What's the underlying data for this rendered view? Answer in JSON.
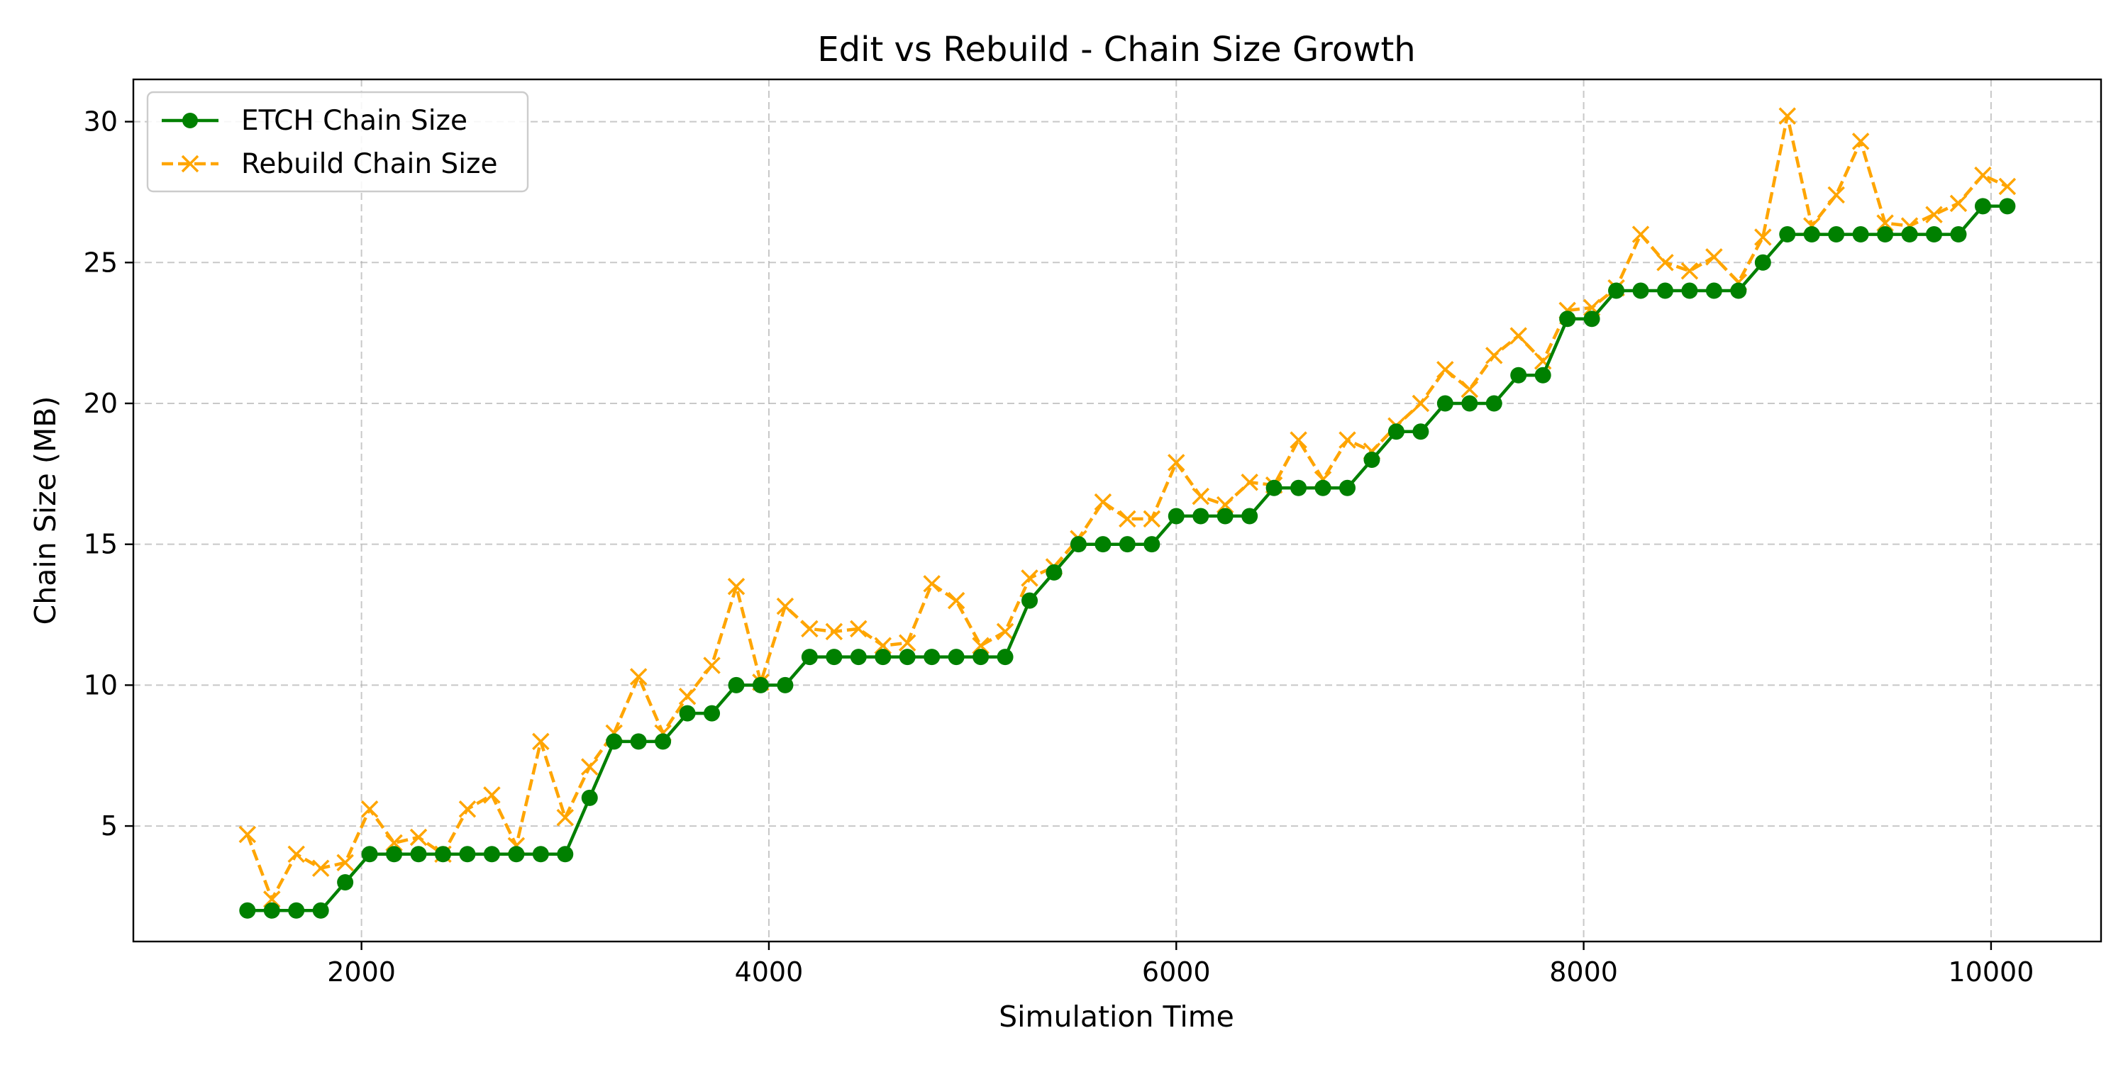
{
  "chart_data": {
    "type": "line",
    "title": "Edit vs Rebuild - Chain Size Growth",
    "xlabel": "Simulation Time",
    "ylabel": "Chain Size (MB)",
    "xlim": [
      880,
      10540
    ],
    "ylim": [
      0.9,
      31.5
    ],
    "xticks": [
      2000,
      4000,
      6000,
      8000,
      10000
    ],
    "yticks": [
      5,
      10,
      15,
      20,
      25,
      30
    ],
    "grid": true,
    "legend_position": "top-left",
    "x": [
      1440,
      1560,
      1680,
      1800,
      1920,
      2040,
      2160,
      2280,
      2400,
      2520,
      2640,
      2760,
      2880,
      3000,
      3120,
      3240,
      3360,
      3480,
      3600,
      3720,
      3840,
      3960,
      4080,
      4200,
      4320,
      4440,
      4560,
      4680,
      4800,
      4920,
      5040,
      5160,
      5280,
      5400,
      5520,
      5640,
      5760,
      5880,
      6000,
      6120,
      6240,
      6360,
      6480,
      6600,
      6720,
      6840,
      6960,
      7080,
      7200,
      7320,
      7440,
      7560,
      7680,
      7800,
      7920,
      8040,
      8160,
      8280,
      8400,
      8520,
      8640,
      8760,
      8880,
      9000,
      9120,
      9240,
      9360,
      9480,
      9600,
      9720,
      9840,
      9960,
      10080
    ],
    "series": [
      {
        "name": "ETCH Chain Size",
        "color": "#008000",
        "line_style": "solid",
        "marker": "circle",
        "values": [
          2,
          2,
          2,
          2,
          3,
          4,
          4,
          4,
          4,
          4,
          4,
          4,
          4,
          4,
          6,
          8,
          8,
          8,
          9,
          9,
          10,
          10,
          10,
          11,
          11,
          11,
          11,
          11,
          11,
          11,
          11,
          11,
          13,
          14,
          15,
          15,
          15,
          15,
          16,
          16,
          16,
          16,
          17,
          17,
          17,
          17,
          18,
          19,
          19,
          20,
          20,
          20,
          21,
          21,
          23,
          23,
          24,
          24,
          24,
          24,
          24,
          24,
          25,
          26,
          26,
          26,
          26,
          26,
          26,
          26,
          26,
          27,
          27
        ]
      },
      {
        "name": "Rebuild Chain Size",
        "color": "#ffa500",
        "line_style": "dashed",
        "marker": "x",
        "values": [
          4.7,
          2.4,
          4.0,
          3.5,
          3.7,
          5.6,
          4.4,
          4.6,
          4.0,
          5.6,
          6.1,
          4.3,
          8.0,
          5.3,
          7.1,
          8.3,
          10.3,
          8.3,
          9.6,
          10.7,
          13.5,
          10.1,
          12.8,
          12.0,
          11.9,
          12.0,
          11.4,
          11.5,
          13.6,
          13.0,
          11.4,
          11.9,
          13.8,
          14.2,
          15.2,
          16.5,
          15.9,
          15.9,
          17.9,
          16.7,
          16.4,
          17.2,
          17.1,
          18.7,
          17.3,
          18.7,
          18.3,
          19.2,
          20.0,
          21.2,
          20.5,
          21.7,
          22.4,
          21.5,
          23.3,
          23.4,
          24.1,
          26.0,
          25.0,
          24.7,
          25.2,
          24.3,
          25.9,
          30.2,
          26.3,
          27.4,
          29.3,
          26.4,
          26.3,
          26.7,
          27.1,
          28.1,
          27.7
        ]
      }
    ]
  }
}
